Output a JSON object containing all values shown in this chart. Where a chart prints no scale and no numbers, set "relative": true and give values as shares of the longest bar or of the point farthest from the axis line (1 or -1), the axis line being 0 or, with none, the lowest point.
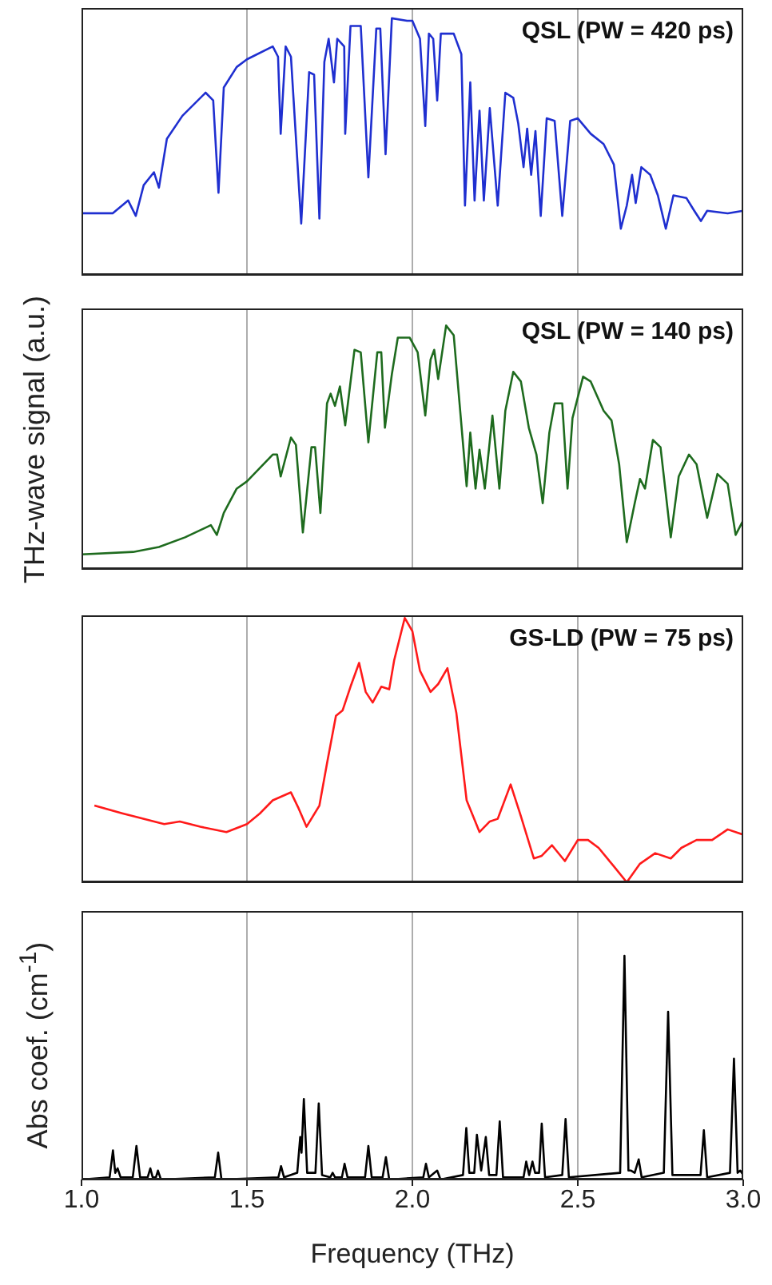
{
  "chart_data": [
    {
      "type": "line",
      "annotations": [
        "QSL (PW = 420 ps)"
      ],
      "relative": true,
      "xlim": [
        1.0,
        3.0
      ],
      "xticks": [
        1.0,
        1.5,
        2.0,
        2.5,
        3.0
      ],
      "tick_labels": false,
      "grid": "x",
      "series": [
        {
          "color": "#1f2fd0",
          "x": [
            1.0,
            1.094,
            1.141,
            1.164,
            1.188,
            1.219,
            1.234,
            1.258,
            1.305,
            1.375,
            1.398,
            1.414,
            1.43,
            1.469,
            1.5,
            1.578,
            1.594,
            1.602,
            1.617,
            1.633,
            1.664,
            1.688,
            1.703,
            1.719,
            1.734,
            1.747,
            1.763,
            1.773,
            1.794,
            1.797,
            1.813,
            1.844,
            1.867,
            1.891,
            1.903,
            1.919,
            1.938,
            1.984,
            2.0,
            2.023,
            2.039,
            2.05,
            2.063,
            2.075,
            2.086,
            2.125,
            2.148,
            2.159,
            2.175,
            2.188,
            2.203,
            2.216,
            2.234,
            2.258,
            2.281,
            2.305,
            2.32,
            2.336,
            2.347,
            2.359,
            2.372,
            2.388,
            2.406,
            2.43,
            2.453,
            2.477,
            2.5,
            2.539,
            2.578,
            2.609,
            2.63,
            2.648,
            2.664,
            2.675,
            2.692,
            2.719,
            2.742,
            2.766,
            2.789,
            2.828,
            2.852,
            2.872,
            2.891,
            2.953,
            3.0
          ],
          "values": [
            0.24,
            0.24,
            0.29,
            0.23,
            0.35,
            0.4,
            0.34,
            0.53,
            0.62,
            0.71,
            0.68,
            0.32,
            0.73,
            0.81,
            0.84,
            0.89,
            0.85,
            0.55,
            0.89,
            0.85,
            0.2,
            0.79,
            0.78,
            0.22,
            0.83,
            0.92,
            0.75,
            0.92,
            0.89,
            0.55,
            0.97,
            0.97,
            0.38,
            0.96,
            0.96,
            0.47,
            1.0,
            0.99,
            0.99,
            0.92,
            0.58,
            0.94,
            0.92,
            0.68,
            0.94,
            0.94,
            0.86,
            0.27,
            0.75,
            0.29,
            0.64,
            0.29,
            0.65,
            0.27,
            0.71,
            0.69,
            0.59,
            0.42,
            0.57,
            0.39,
            0.56,
            0.23,
            0.61,
            0.6,
            0.23,
            0.6,
            0.61,
            0.55,
            0.51,
            0.43,
            0.18,
            0.27,
            0.39,
            0.28,
            0.42,
            0.39,
            0.31,
            0.18,
            0.31,
            0.3,
            0.25,
            0.21,
            0.25,
            0.24,
            0.25
          ]
        }
      ]
    },
    {
      "type": "line",
      "annotations": [
        "QSL (PW = 140 ps)"
      ],
      "ylabel": "THz-wave signal (a.u.)",
      "relative": true,
      "xlim": [
        1.0,
        3.0
      ],
      "xticks": [
        1.0,
        1.5,
        2.0,
        2.5,
        3.0
      ],
      "tick_labels": false,
      "grid": "x",
      "series": [
        {
          "color": "#1e6b1e",
          "x": [
            1.0,
            1.156,
            1.234,
            1.313,
            1.391,
            1.409,
            1.43,
            1.469,
            1.5,
            1.578,
            1.591,
            1.602,
            1.633,
            1.648,
            1.669,
            1.695,
            1.706,
            1.722,
            1.742,
            1.753,
            1.766,
            1.781,
            1.797,
            1.825,
            1.844,
            1.867,
            1.894,
            1.906,
            1.917,
            1.938,
            1.956,
            1.992,
            2.016,
            2.039,
            2.055,
            2.066,
            2.078,
            2.102,
            2.125,
            2.164,
            2.175,
            2.191,
            2.203,
            2.219,
            2.242,
            2.263,
            2.281,
            2.305,
            2.328,
            2.352,
            2.375,
            2.394,
            2.414,
            2.43,
            2.453,
            2.469,
            2.484,
            2.516,
            2.539,
            2.578,
            2.602,
            2.625,
            2.648,
            2.672,
            2.688,
            2.703,
            2.727,
            2.75,
            2.781,
            2.805,
            2.836,
            2.859,
            2.891,
            2.922,
            2.953,
            2.977,
            3.0
          ],
          "values": [
            0.06,
            0.07,
            0.09,
            0.13,
            0.18,
            0.14,
            0.23,
            0.33,
            0.36,
            0.47,
            0.47,
            0.38,
            0.54,
            0.51,
            0.15,
            0.5,
            0.5,
            0.23,
            0.68,
            0.72,
            0.67,
            0.75,
            0.59,
            0.9,
            0.89,
            0.52,
            0.89,
            0.89,
            0.58,
            0.8,
            0.95,
            0.95,
            0.89,
            0.63,
            0.86,
            0.9,
            0.78,
            1.0,
            0.96,
            0.34,
            0.56,
            0.33,
            0.49,
            0.33,
            0.63,
            0.33,
            0.65,
            0.81,
            0.77,
            0.58,
            0.47,
            0.27,
            0.56,
            0.68,
            0.68,
            0.33,
            0.62,
            0.79,
            0.77,
            0.65,
            0.61,
            0.43,
            0.11,
            0.27,
            0.37,
            0.33,
            0.53,
            0.5,
            0.13,
            0.38,
            0.47,
            0.43,
            0.21,
            0.39,
            0.35,
            0.14,
            0.2
          ]
        }
      ]
    },
    {
      "type": "line",
      "annotations": [
        "GS-LD (PW = 75 ps)"
      ],
      "relative": true,
      "xlim": [
        1.0,
        3.0
      ],
      "xticks": [
        1.0,
        1.5,
        2.0,
        2.5,
        3.0
      ],
      "tick_labels": false,
      "grid": "x",
      "series": [
        {
          "color": "#ff1a1a",
          "x": [
            1.039,
            1.125,
            1.156,
            1.25,
            1.297,
            1.359,
            1.438,
            1.5,
            1.539,
            1.578,
            1.633,
            1.656,
            1.68,
            1.719,
            1.742,
            1.769,
            1.789,
            1.813,
            1.839,
            1.859,
            1.88,
            1.906,
            1.93,
            1.945,
            1.977,
            2.0,
            2.023,
            2.055,
            2.078,
            2.106,
            2.133,
            2.164,
            2.203,
            2.234,
            2.258,
            2.297,
            2.328,
            2.367,
            2.391,
            2.422,
            2.461,
            2.5,
            2.531,
            2.563,
            2.609,
            2.648,
            2.688,
            2.734,
            2.781,
            2.813,
            2.859,
            2.906,
            2.953,
            3.0
          ],
          "values": [
            0.29,
            0.26,
            0.25,
            0.22,
            0.23,
            0.21,
            0.19,
            0.22,
            0.26,
            0.31,
            0.34,
            0.28,
            0.21,
            0.29,
            0.45,
            0.63,
            0.65,
            0.74,
            0.83,
            0.72,
            0.68,
            0.74,
            0.73,
            0.84,
            1.0,
            0.95,
            0.8,
            0.72,
            0.75,
            0.81,
            0.64,
            0.31,
            0.19,
            0.23,
            0.24,
            0.37,
            0.25,
            0.09,
            0.1,
            0.14,
            0.08,
            0.16,
            0.16,
            0.13,
            0.06,
            0.0,
            0.07,
            0.11,
            0.09,
            0.13,
            0.16,
            0.16,
            0.2,
            0.18
          ]
        }
      ]
    },
    {
      "type": "line",
      "xlabel": "Frequency (THz)",
      "ylabel": "Abs coef. (cm$^{-1}$)",
      "relative": true,
      "xlim": [
        1.0,
        3.0
      ],
      "xticks": [
        {
          "value": 1.0,
          "label": "1.0"
        },
        {
          "value": 1.5,
          "label": "1.5"
        },
        {
          "value": 2.0,
          "label": "2.0"
        },
        {
          "value": 2.5,
          "label": "2.5"
        },
        {
          "value": 3.0,
          "label": "3.0"
        }
      ],
      "tick_labels": "x",
      "grid": "x",
      "series": [
        {
          "color": "#000000",
          "x": [
            1.0,
            1.085,
            1.095,
            1.102,
            1.109,
            1.118,
            1.155,
            1.166,
            1.177,
            1.2,
            1.208,
            1.215,
            1.225,
            1.231,
            1.24,
            1.403,
            1.413,
            1.423,
            1.595,
            1.603,
            1.612,
            1.652,
            1.661,
            1.665,
            1.672,
            1.682,
            1.707,
            1.717,
            1.727,
            1.752,
            1.759,
            1.766,
            1.787,
            1.795,
            1.804,
            1.857,
            1.867,
            1.877,
            1.91,
            1.92,
            1.93,
            2.033,
            2.041,
            2.05,
            2.075,
            2.085,
            2.153,
            2.163,
            2.172,
            2.187,
            2.195,
            2.208,
            2.222,
            2.232,
            2.254,
            2.264,
            2.274,
            2.336,
            2.344,
            2.353,
            2.363,
            2.371,
            2.383,
            2.391,
            2.401,
            2.453,
            2.463,
            2.473,
            2.628,
            2.641,
            2.653,
            2.661,
            2.672,
            2.684,
            2.693,
            2.76,
            2.773,
            2.786,
            2.871,
            2.881,
            2.891,
            2.96,
            2.972,
            2.983,
            2.991,
            3.0
          ],
          "values": [
            0.0,
            0.01,
            0.13,
            0.03,
            0.05,
            0.01,
            0.01,
            0.15,
            0.01,
            0.01,
            0.05,
            0.01,
            0.01,
            0.04,
            0.0,
            0.01,
            0.12,
            0.0,
            0.01,
            0.06,
            0.01,
            0.03,
            0.19,
            0.12,
            0.36,
            0.03,
            0.03,
            0.34,
            0.02,
            0.01,
            0.03,
            0.01,
            0.01,
            0.07,
            0.01,
            0.01,
            0.15,
            0.01,
            0.01,
            0.1,
            0.0,
            0.01,
            0.07,
            0.01,
            0.04,
            0.0,
            0.02,
            0.23,
            0.03,
            0.03,
            0.2,
            0.04,
            0.19,
            0.02,
            0.02,
            0.26,
            0.01,
            0.01,
            0.08,
            0.02,
            0.08,
            0.03,
            0.03,
            0.25,
            0.01,
            0.02,
            0.27,
            0.01,
            0.03,
            1.0,
            0.04,
            0.04,
            0.03,
            0.09,
            0.01,
            0.03,
            0.75,
            0.02,
            0.02,
            0.22,
            0.01,
            0.03,
            0.54,
            0.03,
            0.04,
            0.02
          ]
        }
      ]
    }
  ]
}
